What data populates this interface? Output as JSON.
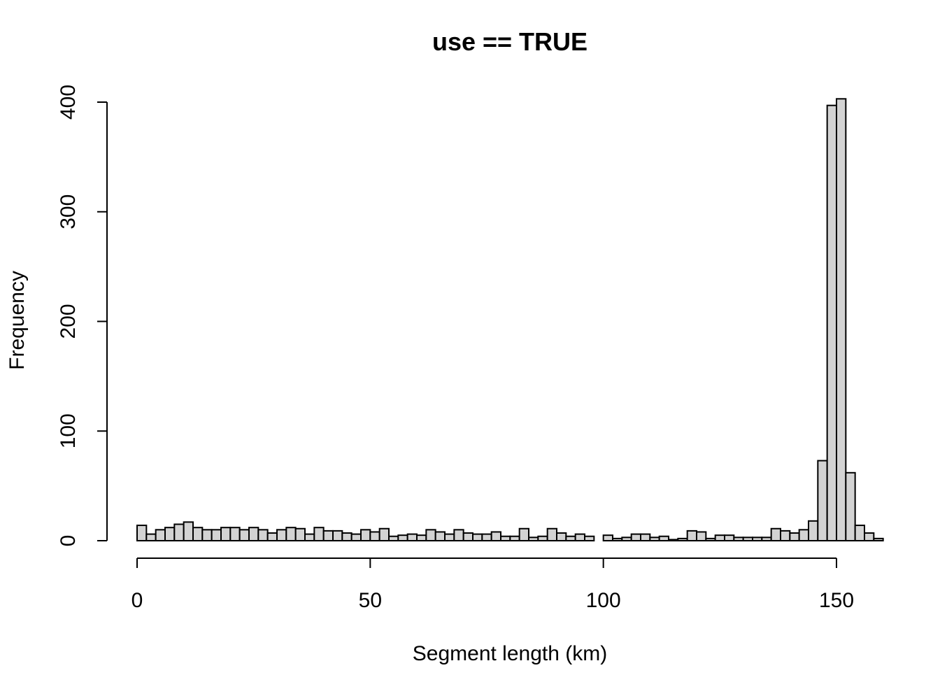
{
  "chart_data": {
    "type": "bar",
    "title": "use == TRUE",
    "xlabel": "Segment length (km)",
    "ylabel": "Frequency",
    "bin_width": 2,
    "bin_start": 0,
    "xlim": [
      0,
      160
    ],
    "ylim": [
      0,
      400
    ],
    "x_ticks": [
      0,
      50,
      100,
      150
    ],
    "y_ticks": [
      0,
      100,
      200,
      300,
      400
    ],
    "bar_fill": "#d3d3d3",
    "bar_stroke": "#000000",
    "values": [
      14,
      6,
      10,
      12,
      15,
      17,
      12,
      10,
      10,
      12,
      12,
      10,
      12,
      10,
      7,
      10,
      12,
      11,
      6,
      12,
      9,
      9,
      7,
      6,
      10,
      8,
      11,
      4,
      5,
      6,
      5,
      10,
      8,
      6,
      10,
      7,
      6,
      6,
      8,
      4,
      4,
      11,
      3,
      4,
      11,
      7,
      4,
      6,
      4,
      0,
      5,
      2,
      3,
      6,
      6,
      3,
      4,
      1,
      2,
      9,
      8,
      2,
      5,
      5,
      3,
      3,
      3,
      3,
      11,
      9,
      7,
      10,
      18,
      73,
      397,
      403,
      62,
      14,
      7,
      2
    ]
  }
}
